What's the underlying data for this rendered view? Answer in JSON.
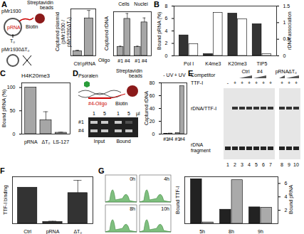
{
  "panel_labels": [
    "A",
    "B",
    "C",
    "D",
    "E",
    "F",
    "G"
  ],
  "diagram_A": {
    "plasmid": "pMr1930",
    "rna": "pRNA",
    "biotin": "Biotin",
    "beads": "Streptavidin beads",
    "site": "T₀",
    "mutant": "pMr1930ΔT₀"
  },
  "diagram_D": {
    "crosslinker": "Psoralen",
    "oligo": "#4-Oligo",
    "biotin": "Biotin",
    "beads": "Streptavidin beads"
  },
  "gel_D": {
    "rows": [
      "#1",
      "#4"
    ],
    "groups": [
      {
        "label": "Input",
        "lanes": [
          "1",
          "5"
        ]
      },
      {
        "label": "Bound",
        "lanes": [
          "1",
          "5"
        ]
      }
    ],
    "unit": "µl"
  },
  "gel_E": {
    "competitor": "Competitor",
    "protein": "TTF-I",
    "signs": [
      "-",
      "+",
      "+",
      "+",
      "+",
      "+",
      "+",
      "+",
      "+",
      "+"
    ],
    "groups": [
      {
        "label": "Ctrl",
        "lanes": [
          3,
          4
        ]
      },
      {
        "label": "#4",
        "lanes": [
          5,
          6
        ]
      },
      {
        "label": "pRNA",
        "lanes": [
          8
        ]
      },
      {
        "label": "ΔT₀",
        "lanes": [
          9,
          10
        ]
      }
    ],
    "bands": [
      "rDNA/TTF-I",
      "rDNA fragment"
    ],
    "lanes": [
      1,
      2,
      3,
      4,
      5,
      6,
      7,
      8,
      9,
      10
    ]
  },
  "flow_G": {
    "timepoints": [
      "0h",
      "4h",
      "8h",
      "10h"
    ]
  },
  "chart_data": [
    {
      "type": "bar",
      "ylabel": "Captured plasmid (pMr1930 / pMr1930ΔT₀)",
      "categories": [
        "Ctrl",
        "pRNA"
      ],
      "values": [
        1.5,
        12
      ],
      "errors": [
        0.3,
        2.5
      ],
      "color": "#a6a6a6",
      "ylim": [
        0,
        15
      ],
      "tick_labels": "x"
    },
    {
      "type": "bar",
      "ylabel": "Captured rDNA",
      "xlabel": "Oligo",
      "categories": [
        "#1",
        "#4"
      ],
      "color": "#a6a6a6",
      "series": [
        {
          "name": "Cells",
          "values": [
            1,
            4.2
          ],
          "errors": [
            0.1,
            0.6
          ]
        },
        {
          "name": "Nuclei",
          "values": [
            1,
            3.8
          ],
          "errors": [
            0.1,
            0.5
          ]
        }
      ],
      "ylim": [
        0,
        5
      ],
      "tick_labels": "x"
    },
    {
      "type": "bar",
      "ylabel": "Bound pRNA (%)",
      "y2label": "rDNA association",
      "categories": [
        "Pol I",
        "K4me3",
        "K20me3",
        "TIP5"
      ],
      "series": [
        {
          "color": "#333333",
          "values": [
            3.3,
            0.3,
            6.8,
            5.1
          ]
        },
        {
          "color": "#ffffff",
          "axis": "y2",
          "values": [
            0.35,
            1.3,
            1.1,
            0.05
          ]
        }
      ],
      "ylim": [
        0,
        8
      ],
      "yticks": [
        0,
        2,
        4,
        6,
        8
      ],
      "y2lim": [
        0,
        1.5
      ],
      "y2ticks": [
        0,
        0.5,
        1,
        1.5
      ]
    },
    {
      "type": "bar",
      "title": "H4K20me3",
      "ylabel": "Bound pRNA (%)",
      "categories": [
        "pRNA",
        "ΔT₀",
        "LS-127"
      ],
      "values": [
        100,
        30,
        3
      ],
      "errors": [
        null,
        18,
        1
      ],
      "color": "#a6a6a6",
      "ylim": [
        0,
        110
      ],
      "yticks": [
        0,
        50,
        100
      ]
    },
    {
      "type": "bar",
      "ylabel": "Captured rDNA",
      "categories": [
        "#1",
        "#4"
      ],
      "color": "#a6a6a6",
      "series": [
        {
          "name": "- UV",
          "values": [
            0.5,
            1
          ]
        },
        {
          "name": "+ UV",
          "values": [
            1.5,
            75
          ]
        }
      ],
      "ylim": [
        0,
        80
      ],
      "yticks": [
        0,
        20,
        40,
        60,
        80
      ]
    },
    {
      "type": "bar",
      "ylabel": "TTF-I binding",
      "categories": [
        "Ctrl",
        "pRNA",
        "ΔT₀"
      ],
      "values": [
        1,
        0.05,
        0.85
      ],
      "errors": [
        null,
        0.02,
        0.35
      ],
      "color": "#333333",
      "ylim": [
        0,
        1.3
      ],
      "tick_labels": "x"
    },
    {
      "type": "bar",
      "ylabel": "Bound TTF-I",
      "y2label": "Bound pRNA",
      "categories": [
        "5h",
        "8h",
        "9h"
      ],
      "series": [
        {
          "color": "#222222",
          "values": [
            0.95,
            0.3,
            0.35
          ]
        },
        {
          "color": "#aaaaaa",
          "axis": "y2",
          "values": [
            0.2,
            6.5,
            2.4
          ]
        }
      ],
      "ylim": [
        0,
        1
      ],
      "tick_labels": "x",
      "y2lim": [
        0,
        7
      ],
      "y2ticks": [
        2,
        4,
        6
      ]
    }
  ]
}
